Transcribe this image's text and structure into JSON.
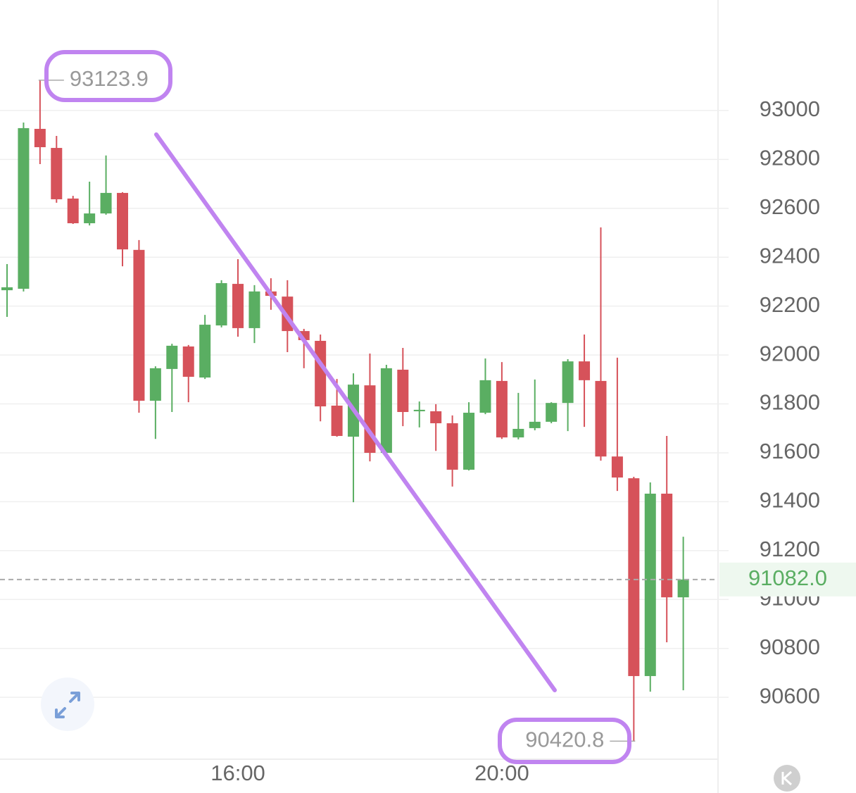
{
  "chart_data": {
    "type": "candlestick",
    "categories": [
      null,
      null,
      null,
      null,
      null,
      null,
      null,
      null,
      null,
      null,
      null,
      null,
      null,
      null,
      "16:00",
      null,
      null,
      null,
      null,
      null,
      null,
      null,
      null,
      null,
      null,
      null,
      null,
      null,
      null,
      null,
      "20:00",
      null,
      null,
      null,
      null,
      null,
      null,
      null,
      null,
      null,
      null,
      null
    ],
    "open": [
      92265,
      92271,
      92925,
      92847,
      92640,
      92539,
      92579,
      92663,
      92430,
      91813,
      91943,
      92035,
      91908,
      92121,
      92291,
      92110,
      92260,
      92239,
      92098,
      92058,
      91793,
      91666,
      91876,
      91600,
      91940,
      91770,
      91770,
      91721,
      91531,
      91764,
      91894,
      91663,
      91701,
      91727,
      91804,
      91974,
      91894,
      91585,
      91496,
      90687,
      91433,
      91009
    ],
    "high": [
      92372,
      92951,
      93123.9,
      92896,
      92651,
      92709,
      92816,
      92666,
      92470,
      91954,
      92046,
      92041,
      92164,
      92306,
      92392,
      92286,
      92314,
      92306,
      92107,
      92084,
      91902,
      91925,
      92006,
      91960,
      92029,
      91810,
      91799,
      91753,
      91807,
      91986,
      91971,
      91845,
      91900,
      91807,
      91983,
      92084,
      92522,
      91989,
      91502,
      91479,
      91669,
      91257
    ],
    "low": [
      92156,
      92260,
      92781,
      92623,
      92536,
      92530,
      92574,
      92363,
      91764,
      91657,
      91767,
      91807,
      91902,
      92113,
      92075,
      92049,
      92185,
      92012,
      91946,
      91729,
      91666,
      91398,
      91565,
      91594,
      91709,
      91704,
      91608,
      91462,
      91528,
      91758,
      91657,
      91655,
      91692,
      91721,
      91689,
      91706,
      91568,
      91444,
      90420.8,
      90623,
      90825,
      90629
    ],
    "close": [
      92277,
      92928,
      92850,
      92637,
      92539,
      92579,
      92663,
      92432,
      91813,
      91946,
      92038,
      91911,
      92124,
      92294,
      92110,
      92260,
      92242,
      92098,
      92061,
      91790,
      91669,
      91879,
      91600,
      91946,
      91767,
      91776,
      91721,
      91531,
      91764,
      91897,
      91663,
      91698,
      91727,
      91804,
      91974,
      91897,
      91585,
      91499,
      90687,
      91433,
      91009,
      91082
    ],
    "up_color": "#5aae62",
    "down_color": "#d6525a",
    "ylim": [
      90347,
      93452
    ],
    "yticks": [
      93000,
      92800,
      92600,
      92400,
      92200,
      92000,
      91800,
      91600,
      91400,
      91200,
      91000,
      90800,
      90600
    ],
    "grid": true,
    "price_line": {
      "value": 91082,
      "label": "91082.0"
    }
  }
}
